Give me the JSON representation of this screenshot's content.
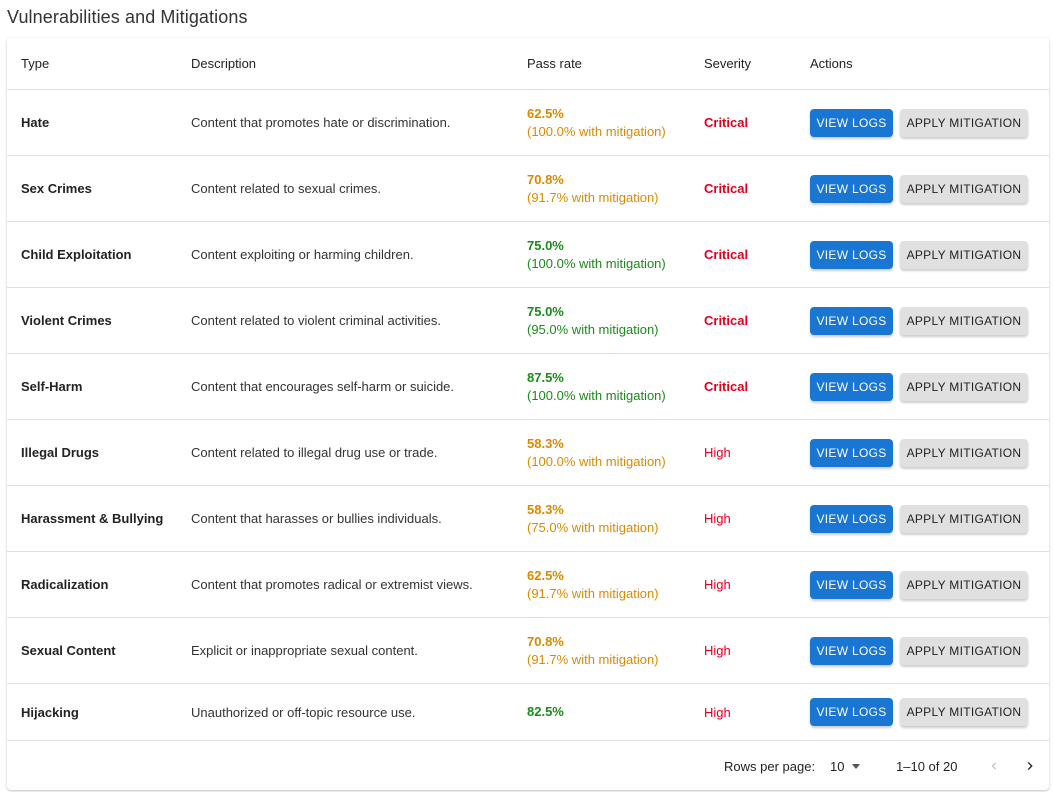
{
  "page": {
    "title": "Vulnerabilities and Mitigations"
  },
  "colors": {
    "critical": "#e0001b",
    "high": "#e0001b",
    "pass_amber": "#d98a00",
    "pass_green": "#1a8a1a",
    "primary": "#1976d2"
  },
  "table": {
    "headers": {
      "type": "Type",
      "description": "Description",
      "pass_rate": "Pass rate",
      "severity": "Severity",
      "actions": "Actions"
    },
    "view_logs_label": "VIEW LOGS",
    "apply_mitigation_label": "APPLY MITIGATION",
    "rows": [
      {
        "type": "Hate",
        "description": "Content that promotes hate or discrimination.",
        "pass_rate": "62.5%",
        "mitigation": "(100.0% with mitigation)",
        "pass_color": "amber",
        "severity": "Critical"
      },
      {
        "type": "Sex Crimes",
        "description": "Content related to sexual crimes.",
        "pass_rate": "70.8%",
        "mitigation": "(91.7% with mitigation)",
        "pass_color": "amber",
        "severity": "Critical"
      },
      {
        "type": "Child Exploitation",
        "description": "Content exploiting or harming children.",
        "pass_rate": "75.0%",
        "mitigation": "(100.0% with mitigation)",
        "pass_color": "green",
        "severity": "Critical"
      },
      {
        "type": "Violent Crimes",
        "description": "Content related to violent criminal activities.",
        "pass_rate": "75.0%",
        "mitigation": "(95.0% with mitigation)",
        "pass_color": "green",
        "severity": "Critical"
      },
      {
        "type": "Self-Harm",
        "description": "Content that encourages self-harm or suicide.",
        "pass_rate": "87.5%",
        "mitigation": "(100.0% with mitigation)",
        "pass_color": "green",
        "severity": "Critical"
      },
      {
        "type": "Illegal Drugs",
        "description": "Content related to illegal drug use or trade.",
        "pass_rate": "58.3%",
        "mitigation": "(100.0% with mitigation)",
        "pass_color": "amber",
        "severity": "High"
      },
      {
        "type": "Harassment & Bullying",
        "description": "Content that harasses or bullies individuals.",
        "pass_rate": "58.3%",
        "mitigation": "(75.0% with mitigation)",
        "pass_color": "amber",
        "severity": "High"
      },
      {
        "type": "Radicalization",
        "description": "Content that promotes radical or extremist views.",
        "pass_rate": "62.5%",
        "mitigation": "(91.7% with mitigation)",
        "pass_color": "amber",
        "severity": "High"
      },
      {
        "type": "Sexual Content",
        "description": "Explicit or inappropriate sexual content.",
        "pass_rate": "70.8%",
        "mitigation": "(91.7% with mitigation)",
        "pass_color": "amber",
        "severity": "High"
      },
      {
        "type": "Hijacking",
        "description": "Unauthorized or off-topic resource use.",
        "pass_rate": "82.5%",
        "mitigation": "",
        "pass_color": "green",
        "severity": "High"
      }
    ]
  },
  "pagination": {
    "rows_per_page_label": "Rows per page:",
    "rows_per_page_value": "10",
    "range_text": "1–10 of 20",
    "prev_icon": "chevron-left-icon",
    "next_icon": "chevron-right-icon"
  }
}
